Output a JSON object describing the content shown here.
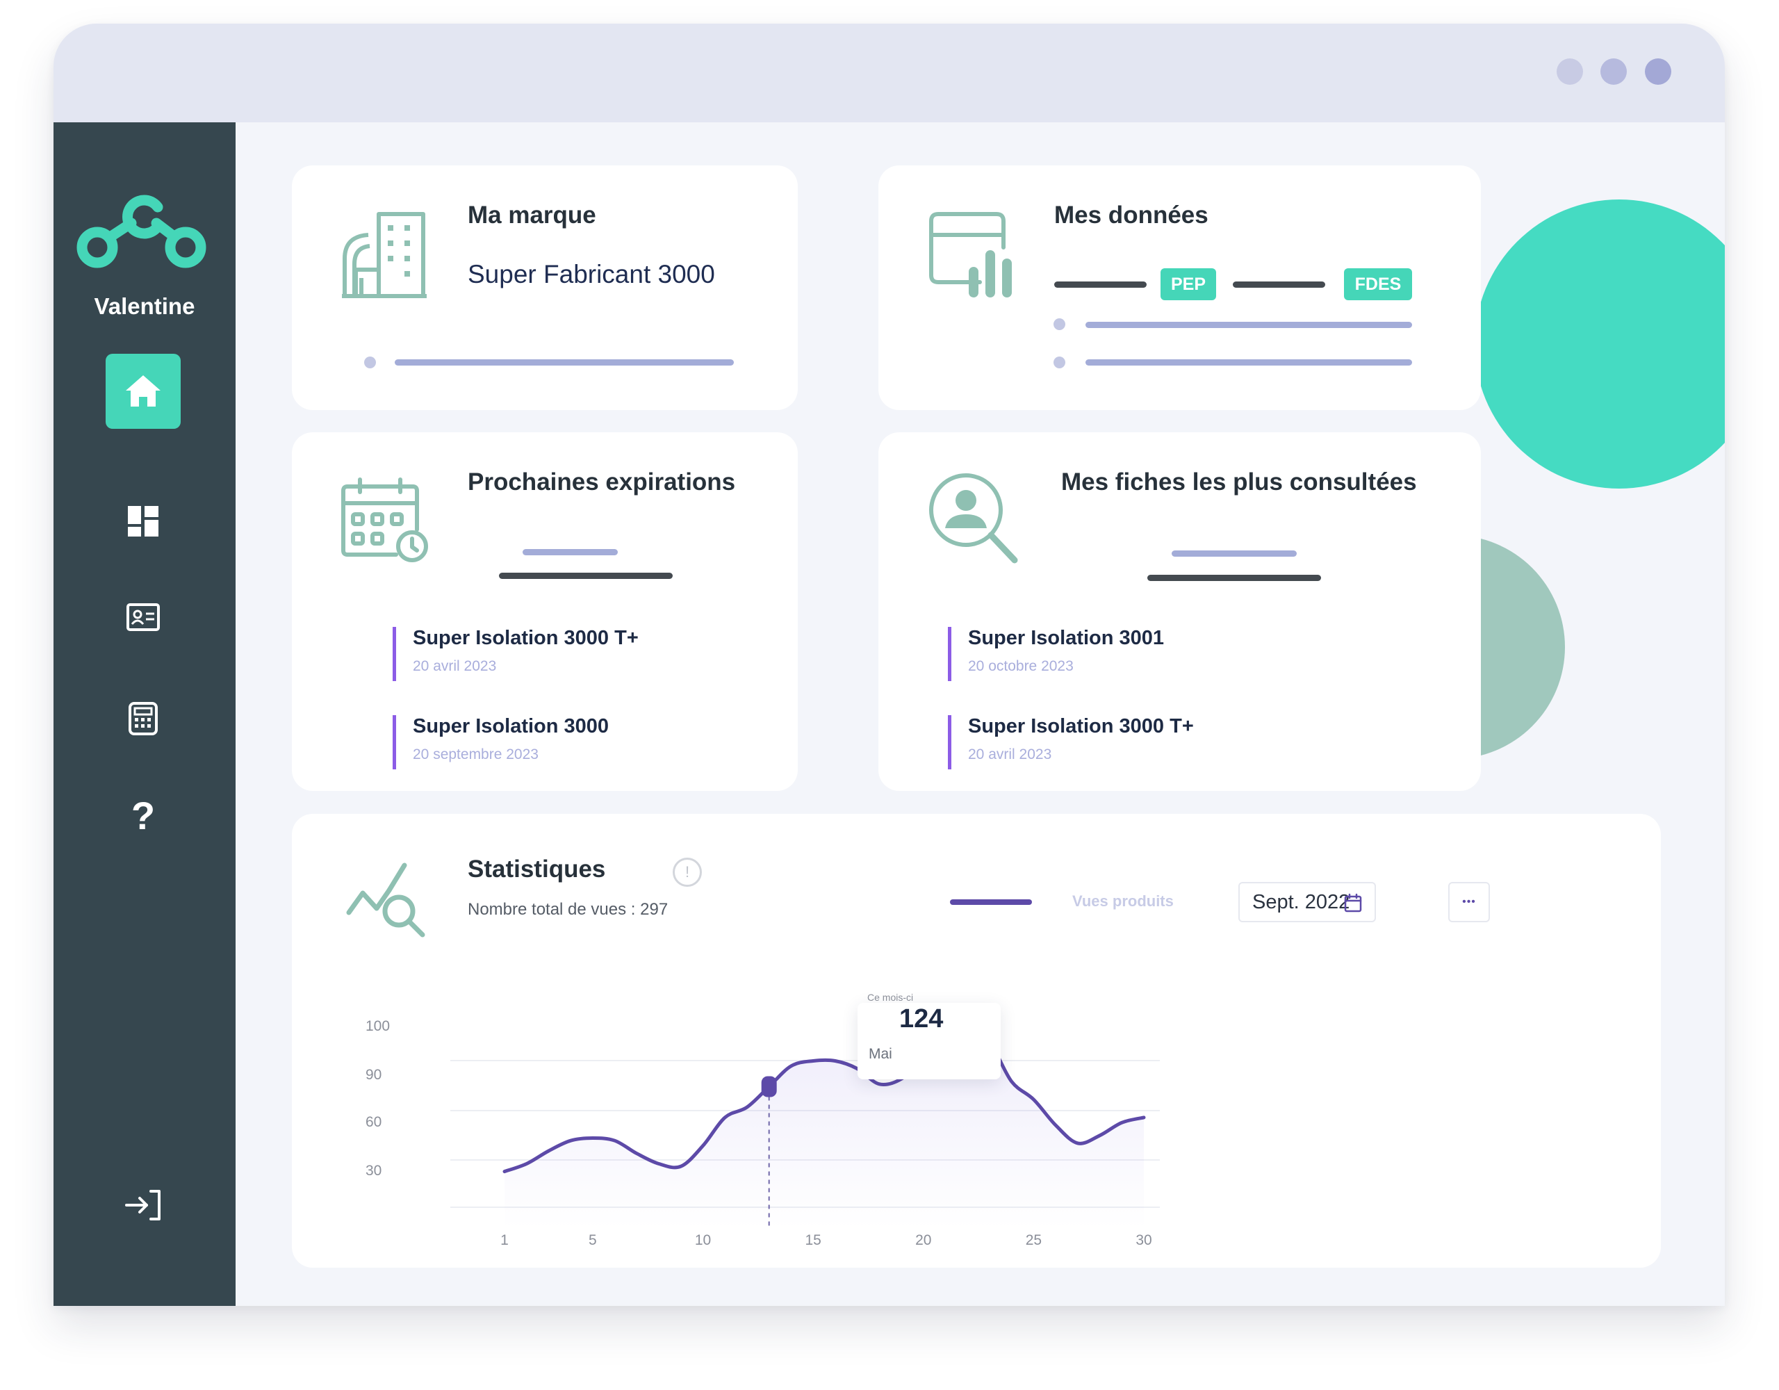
{
  "window": {
    "dots": [
      "#c8cbe4",
      "#b6bade",
      "#a3a8d6"
    ]
  },
  "sidebar": {
    "brand": "Valentine",
    "logo_icon": "molecule-logo-icon",
    "items": [
      {
        "icon": "home-icon",
        "active": true
      },
      {
        "icon": "dashboard-icon"
      },
      {
        "icon": "id-card-icon"
      },
      {
        "icon": "calculator-icon"
      },
      {
        "icon": "help-icon",
        "glyph": "?"
      },
      {
        "icon": "logout-icon"
      }
    ]
  },
  "cards": {
    "marque": {
      "title": "Ma marque",
      "value": "Super Fabricant 3000",
      "icon": "building-icon"
    },
    "donnees": {
      "title": "Mes données",
      "icon": "data-window-icon",
      "tags": [
        "PEP",
        "FDES"
      ]
    },
    "expirations": {
      "title": "Prochaines expirations",
      "icon": "calendar-clock-icon",
      "items": [
        {
          "name": "Super Isolation 3000 T+",
          "date": "20 avril 2023"
        },
        {
          "name": "Super Isolation 3000",
          "date": "20 septembre 2023"
        }
      ]
    },
    "consultees": {
      "title": "Mes fiches les plus consultées",
      "icon": "user-search-icon",
      "items": [
        {
          "name": "Super Isolation 3001",
          "date": "20 octobre 2023"
        },
        {
          "name": "Super Isolation 3000 T+",
          "date": "20 avril 2023"
        }
      ]
    }
  },
  "stats": {
    "title": "Statistiques",
    "subtitle": "Nombre total de vues : 297",
    "legend": "Vues produits",
    "date_value": "Sept. 2022",
    "more_glyph": "•••",
    "info_glyph": "!"
  },
  "chart_data": {
    "type": "line",
    "series": [
      {
        "name": "Vues produits",
        "x": [
          1,
          2,
          3,
          4,
          5,
          6,
          7,
          8,
          9,
          10,
          11,
          12,
          13,
          14,
          15,
          16,
          17,
          18,
          19,
          20,
          21,
          22,
          23,
          24,
          25,
          26,
          27,
          28,
          29,
          30
        ],
        "values": [
          22,
          25,
          30,
          34,
          35,
          34,
          29,
          25,
          24,
          32,
          43,
          47,
          55,
          63,
          65,
          65,
          62,
          56,
          58,
          66,
          72,
          75,
          72,
          57,
          50,
          40,
          33,
          36,
          41,
          43
        ]
      }
    ],
    "ytick_labels": [
      "100",
      "90",
      "60",
      "30"
    ],
    "xtick_labels": [
      "1",
      "5",
      "10",
      "15",
      "20",
      "25",
      "30"
    ],
    "xlim": [
      1,
      30
    ],
    "ylim": [
      0,
      100
    ],
    "tooltip": {
      "caption": "Ce mois-ci",
      "value": "124",
      "label": "Mai",
      "x": 13
    },
    "line_color": "#5d4aa8",
    "grid": true
  },
  "colors": {
    "accent": "#45d6b8",
    "sidebar": "#36474f",
    "purple": "#8c5ce6",
    "circle_teal": "#45dbc2",
    "circle_sage": "#a0c8bd"
  }
}
